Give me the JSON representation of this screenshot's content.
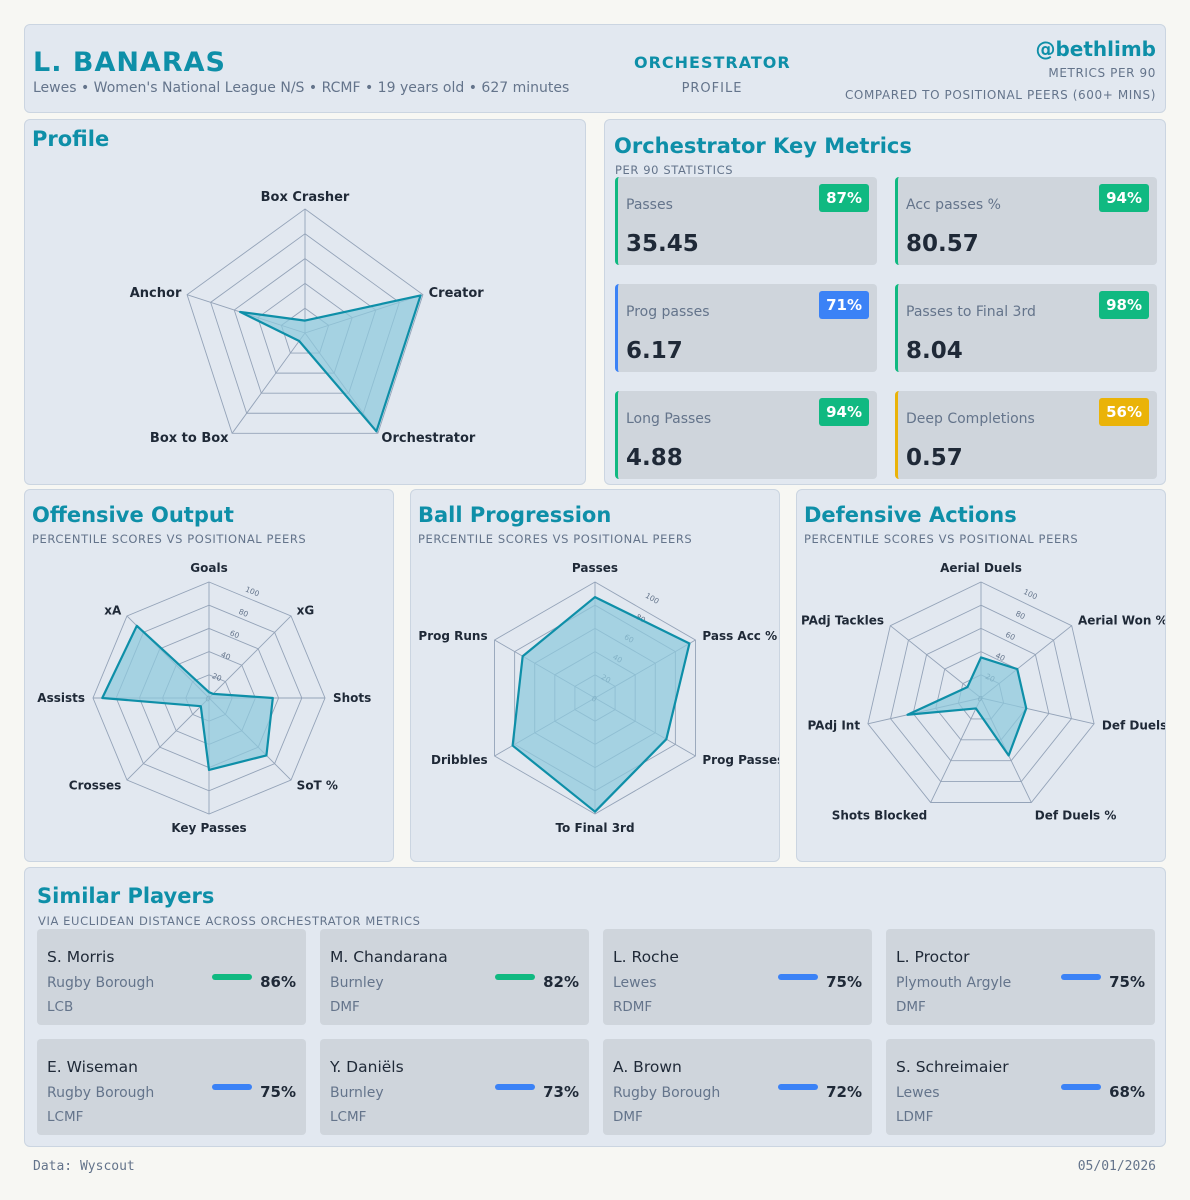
{
  "header": {
    "player_name": "L. BANARAS",
    "player_meta": "Lewes • Women's National League N/S • RCMF • 19 years old • 627 minutes",
    "role_title": "ORCHESTRATOR",
    "role_subtitle": "PROFILE",
    "handle": "@bethlimb",
    "metrics_per": "METRICS PER 90",
    "compared": "COMPARED TO POSITIONAL PEERS (600+ MINS)"
  },
  "colors": {
    "accent": "#0e8fa8",
    "green": "#10b981",
    "blue": "#3b82f6",
    "yellow": "#eab308",
    "radar_fill": "#8ec9dc",
    "radar_line": "#0e8fa8",
    "grid": "#94a3b8"
  },
  "profile": {
    "title": "Profile"
  },
  "key_metrics": {
    "title": "Orchestrator Key Metrics",
    "subtitle": "PER 90 STATISTICS",
    "cards": [
      {
        "label": "Passes",
        "value": "35.45",
        "badge": "87%",
        "color": "#10b981"
      },
      {
        "label": "Acc passes %",
        "value": "80.57",
        "badge": "94%",
        "color": "#10b981"
      },
      {
        "label": "Prog passes",
        "value": "6.17",
        "badge": "71%",
        "color": "#3b82f6"
      },
      {
        "label": "Passes to Final 3rd",
        "value": "8.04",
        "badge": "98%",
        "color": "#10b981"
      },
      {
        "label": "Long Passes",
        "value": "4.88",
        "badge": "94%",
        "color": "#10b981"
      },
      {
        "label": "Deep Completions",
        "value": "0.57",
        "badge": "56%",
        "color": "#eab308"
      }
    ]
  },
  "offense": {
    "title": "Offensive Output",
    "subtitle": "PERCENTILE SCORES VS POSITIONAL PEERS"
  },
  "progression": {
    "title": "Ball Progression",
    "subtitle": "PERCENTILE SCORES VS POSITIONAL PEERS"
  },
  "defense": {
    "title": "Defensive Actions",
    "subtitle": "PERCENTILE SCORES VS POSITIONAL PEERS"
  },
  "chart_data": [
    {
      "type": "radar",
      "id": "profile",
      "title": "Profile",
      "categories": [
        "Box Crasher",
        "Creator",
        "Orchestrator",
        "Box to Box",
        "Anchor"
      ],
      "values": [
        10,
        98,
        98,
        8,
        55
      ],
      "range": [
        0,
        100
      ],
      "rings": 5,
      "tick_labels": []
    },
    {
      "type": "radar",
      "id": "offense",
      "title": "Offensive Output",
      "categories": [
        "Goals",
        "xG",
        "Shots",
        "SoT %",
        "Key Passes",
        "Crosses",
        "Assists",
        "xA"
      ],
      "values": [
        5,
        5,
        55,
        70,
        62,
        10,
        92,
        88
      ],
      "range": [
        0,
        100
      ],
      "rings": 5,
      "tick_labels": [
        "0",
        "20",
        "40",
        "60",
        "80",
        "100"
      ]
    },
    {
      "type": "radar",
      "id": "progression",
      "title": "Ball Progression",
      "categories": [
        "Passes",
        "Pass Acc %",
        "Prog Passes",
        "To Final 3rd",
        "Dribbles",
        "Prog Runs"
      ],
      "values": [
        87,
        94,
        71,
        98,
        82,
        72
      ],
      "range": [
        0,
        100
      ],
      "rings": 5,
      "tick_labels": [
        "0",
        "20",
        "40",
        "60",
        "80",
        "100"
      ]
    },
    {
      "type": "radar",
      "id": "defense",
      "title": "Defensive Actions",
      "categories": [
        "Aerial Duels",
        "Aerial Won %",
        "Def Duels",
        "Def Duels %",
        "Shots Blocked",
        "PAdj Int",
        "PAdj Tackles"
      ],
      "values": [
        35,
        40,
        40,
        55,
        10,
        65,
        15
      ],
      "range": [
        0,
        100
      ],
      "rings": 5,
      "tick_labels": [
        "0",
        "20",
        "40",
        "60",
        "80",
        "100"
      ]
    }
  ],
  "similar": {
    "title": "Similar Players",
    "subtitle": "VIA EUCLIDEAN DISTANCE ACROSS ORCHESTRATOR METRICS",
    "players": [
      {
        "name": "S. Morris",
        "club": "Rugby Borough",
        "pos": "LCB",
        "pct": "86%",
        "color": "#10b981"
      },
      {
        "name": "M. Chandarana",
        "club": "Burnley",
        "pos": "DMF",
        "pct": "82%",
        "color": "#10b981"
      },
      {
        "name": "L. Roche",
        "club": "Lewes",
        "pos": "RDMF",
        "pct": "75%",
        "color": "#3b82f6"
      },
      {
        "name": "L. Proctor",
        "club": "Plymouth Argyle",
        "pos": "DMF",
        "pct": "75%",
        "color": "#3b82f6"
      },
      {
        "name": "E. Wiseman",
        "club": "Rugby Borough",
        "pos": "LCMF",
        "pct": "75%",
        "color": "#3b82f6"
      },
      {
        "name": "Y. Daniëls",
        "club": "Burnley",
        "pos": "LCMF",
        "pct": "73%",
        "color": "#3b82f6"
      },
      {
        "name": "A. Brown",
        "club": "Rugby Borough",
        "pos": "DMF",
        "pct": "72%",
        "color": "#3b82f6"
      },
      {
        "name": "S. Schreimaier",
        "club": "Lewes",
        "pos": "LDMF",
        "pct": "68%",
        "color": "#3b82f6"
      }
    ]
  },
  "footer": {
    "source": "Data: Wyscout",
    "date": "05/01/2026"
  }
}
